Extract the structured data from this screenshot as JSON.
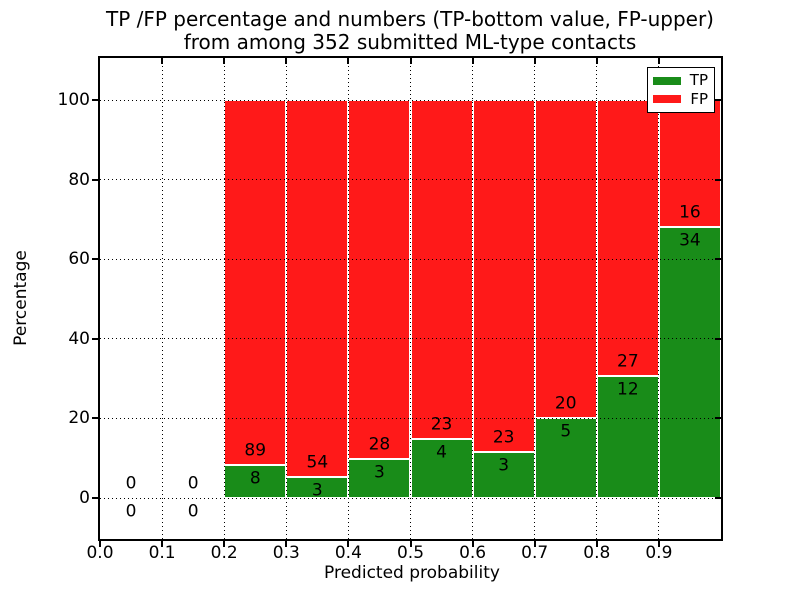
{
  "figure": {
    "title_line1": "TP /FP percentage and numbers (TP-bottom value, FP-upper)",
    "title_line2": "from among 352 submitted ML-type contacts"
  },
  "chart_data": {
    "type": "bar",
    "stacked": true,
    "title": "TP /FP percentage and numbers (TP-bottom value, FP-upper)\nfrom among 352 submitted ML-type contacts",
    "xlabel": "Predicted probability",
    "ylabel": "Percentage",
    "xlim": [
      0.0,
      1.0
    ],
    "ylim": [
      -10.5,
      110.5
    ],
    "x_ticks": [
      "0.0",
      "0.1",
      "0.2",
      "0.3",
      "0.4",
      "0.5",
      "0.6",
      "0.7",
      "0.8",
      "0.9"
    ],
    "y_ticks": [
      0,
      20,
      40,
      60,
      80,
      100
    ],
    "grid": true,
    "legend_position": "upper right",
    "total_contacts": 352,
    "bin_width": 0.1,
    "bins": [
      {
        "x_start": 0.0,
        "tp": 0,
        "fp": 0
      },
      {
        "x_start": 0.1,
        "tp": 0,
        "fp": 0
      },
      {
        "x_start": 0.2,
        "tp": 8,
        "fp": 89
      },
      {
        "x_start": 0.3,
        "tp": 3,
        "fp": 54
      },
      {
        "x_start": 0.4,
        "tp": 3,
        "fp": 28
      },
      {
        "x_start": 0.5,
        "tp": 4,
        "fp": 23
      },
      {
        "x_start": 0.6,
        "tp": 3,
        "fp": 23
      },
      {
        "x_start": 0.7,
        "tp": 5,
        "fp": 20
      },
      {
        "x_start": 0.8,
        "tp": 12,
        "fp": 27
      },
      {
        "x_start": 0.9,
        "tp": 34,
        "fp": 16
      }
    ],
    "series": [
      {
        "name": "TP",
        "color": "#198c19",
        "values": [
          0,
          0,
          8,
          3,
          3,
          4,
          3,
          5,
          12,
          34
        ]
      },
      {
        "name": "FP",
        "color": "#ff1919",
        "values": [
          0,
          0,
          89,
          54,
          28,
          23,
          23,
          20,
          27,
          16
        ]
      }
    ]
  },
  "colors": {
    "tp_green": "#198c19",
    "fp_red": "#ff1919",
    "grid": "#000000",
    "background": "#ffffff"
  }
}
